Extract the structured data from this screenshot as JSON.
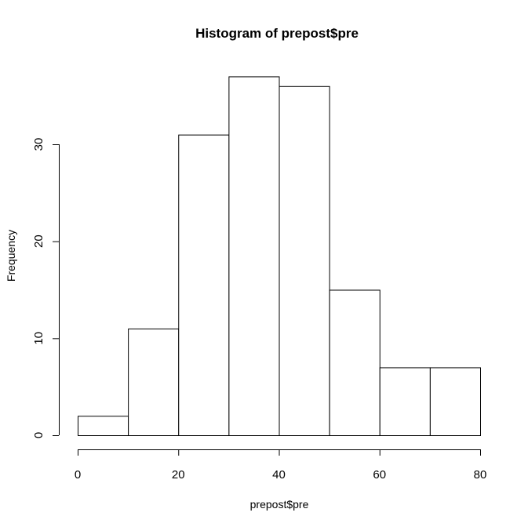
{
  "chart_data": {
    "type": "bar",
    "title": "Histogram of prepost$pre",
    "xlabel": "prepost$pre",
    "ylabel": "Frequency",
    "bins": [
      [
        0,
        10
      ],
      [
        10,
        20
      ],
      [
        20,
        30
      ],
      [
        30,
        40
      ],
      [
        40,
        50
      ],
      [
        50,
        60
      ],
      [
        60,
        70
      ],
      [
        70,
        80
      ]
    ],
    "values": [
      2,
      11,
      31,
      37,
      36,
      15,
      7,
      7
    ],
    "xticks": [
      0,
      20,
      40,
      60,
      80
    ],
    "yticks": [
      0,
      10,
      20,
      30
    ],
    "xlim": [
      0,
      80
    ],
    "ylim": [
      0,
      37
    ],
    "grid": false,
    "bar_fill": "#ffffff",
    "bar_stroke": "#000000"
  }
}
